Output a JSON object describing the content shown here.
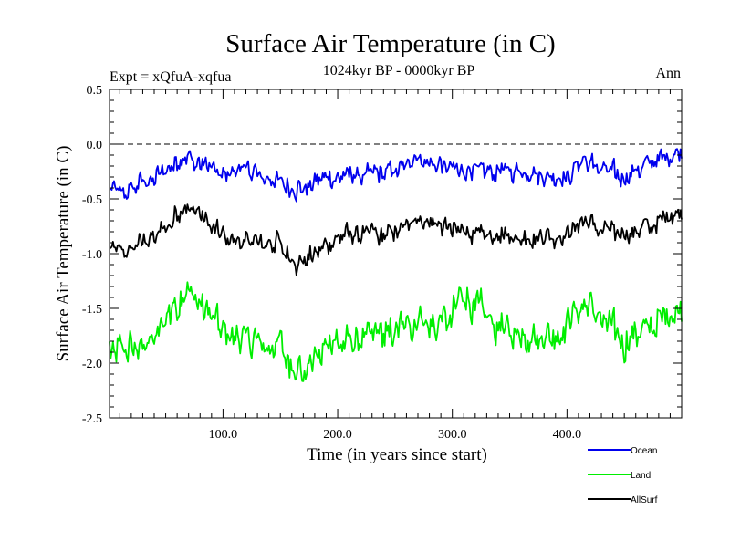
{
  "chart_data": {
    "type": "line",
    "title": "Surface Air Temperature (in C)",
    "subtitle": "1024kyr BP - 0000kyr BP",
    "experiment_label": "Expt = xQfuA-xqfua",
    "season_label": "Ann",
    "xlabel": "Time (in years since start)",
    "ylabel": "Surface Air Temperature (in C)",
    "xlim": [
      1,
      500
    ],
    "ylim": [
      -2.5,
      0.5
    ],
    "x_ticks": [
      100,
      200,
      300,
      400
    ],
    "x_tick_labels": [
      "100.0",
      "200.0",
      "300.0",
      "400.0"
    ],
    "y_ticks": [
      0.5,
      0.0,
      -0.5,
      -1.0,
      -1.5,
      -2.0,
      -2.5
    ],
    "y_tick_labels": [
      "0.5",
      "0.0",
      "-0.5",
      "-1.0",
      "-1.5",
      "-2.0",
      "-2.5"
    ],
    "reference_line": 0.0,
    "series_samples_per_year": "1 value per year, years 1-500 (noisy annual series; generated around the listed anchor trend)",
    "series": [
      {
        "name": "Ocean",
        "color": "#0000ee",
        "anchors_x": [
          1,
          10,
          40,
          68,
          100,
          116,
          150,
          165,
          200,
          250,
          270,
          300,
          350,
          400,
          413,
          450,
          500
        ],
        "anchors_y": [
          -0.4,
          -0.45,
          -0.3,
          -0.1,
          -0.3,
          -0.22,
          -0.35,
          -0.4,
          -0.3,
          -0.25,
          -0.1,
          -0.25,
          -0.25,
          -0.3,
          -0.15,
          -0.3,
          -0.05
        ],
        "amplitude": 0.16
      },
      {
        "name": "Land",
        "color": "#00ee00",
        "anchors_x": [
          1,
          10,
          40,
          68,
          100,
          116,
          150,
          165,
          200,
          250,
          270,
          300,
          305,
          350,
          400,
          413,
          450,
          500
        ],
        "anchors_y": [
          -1.85,
          -1.9,
          -1.8,
          -1.3,
          -1.75,
          -1.8,
          -1.85,
          -2.1,
          -1.8,
          -1.7,
          -1.6,
          -1.6,
          -1.35,
          -1.75,
          -1.7,
          -1.45,
          -1.8,
          -1.5
        ],
        "amplitude": 0.28
      },
      {
        "name": "AllSurf",
        "color": "#000000",
        "anchors_x": [
          1,
          10,
          40,
          68,
          100,
          116,
          150,
          165,
          200,
          250,
          270,
          300,
          350,
          400,
          413,
          450,
          500
        ],
        "anchors_y": [
          -0.95,
          -1.0,
          -0.85,
          -0.55,
          -0.85,
          -0.9,
          -0.9,
          -1.1,
          -0.85,
          -0.8,
          -0.65,
          -0.8,
          -0.85,
          -0.85,
          -0.7,
          -0.85,
          -0.6
        ],
        "amplitude": 0.17
      }
    ]
  },
  "legend": [
    {
      "label": "Ocean",
      "color": "#0000ee"
    },
    {
      "label": "Land",
      "color": "#00ee00"
    },
    {
      "label": "AllSurf",
      "color": "#000000"
    }
  ]
}
